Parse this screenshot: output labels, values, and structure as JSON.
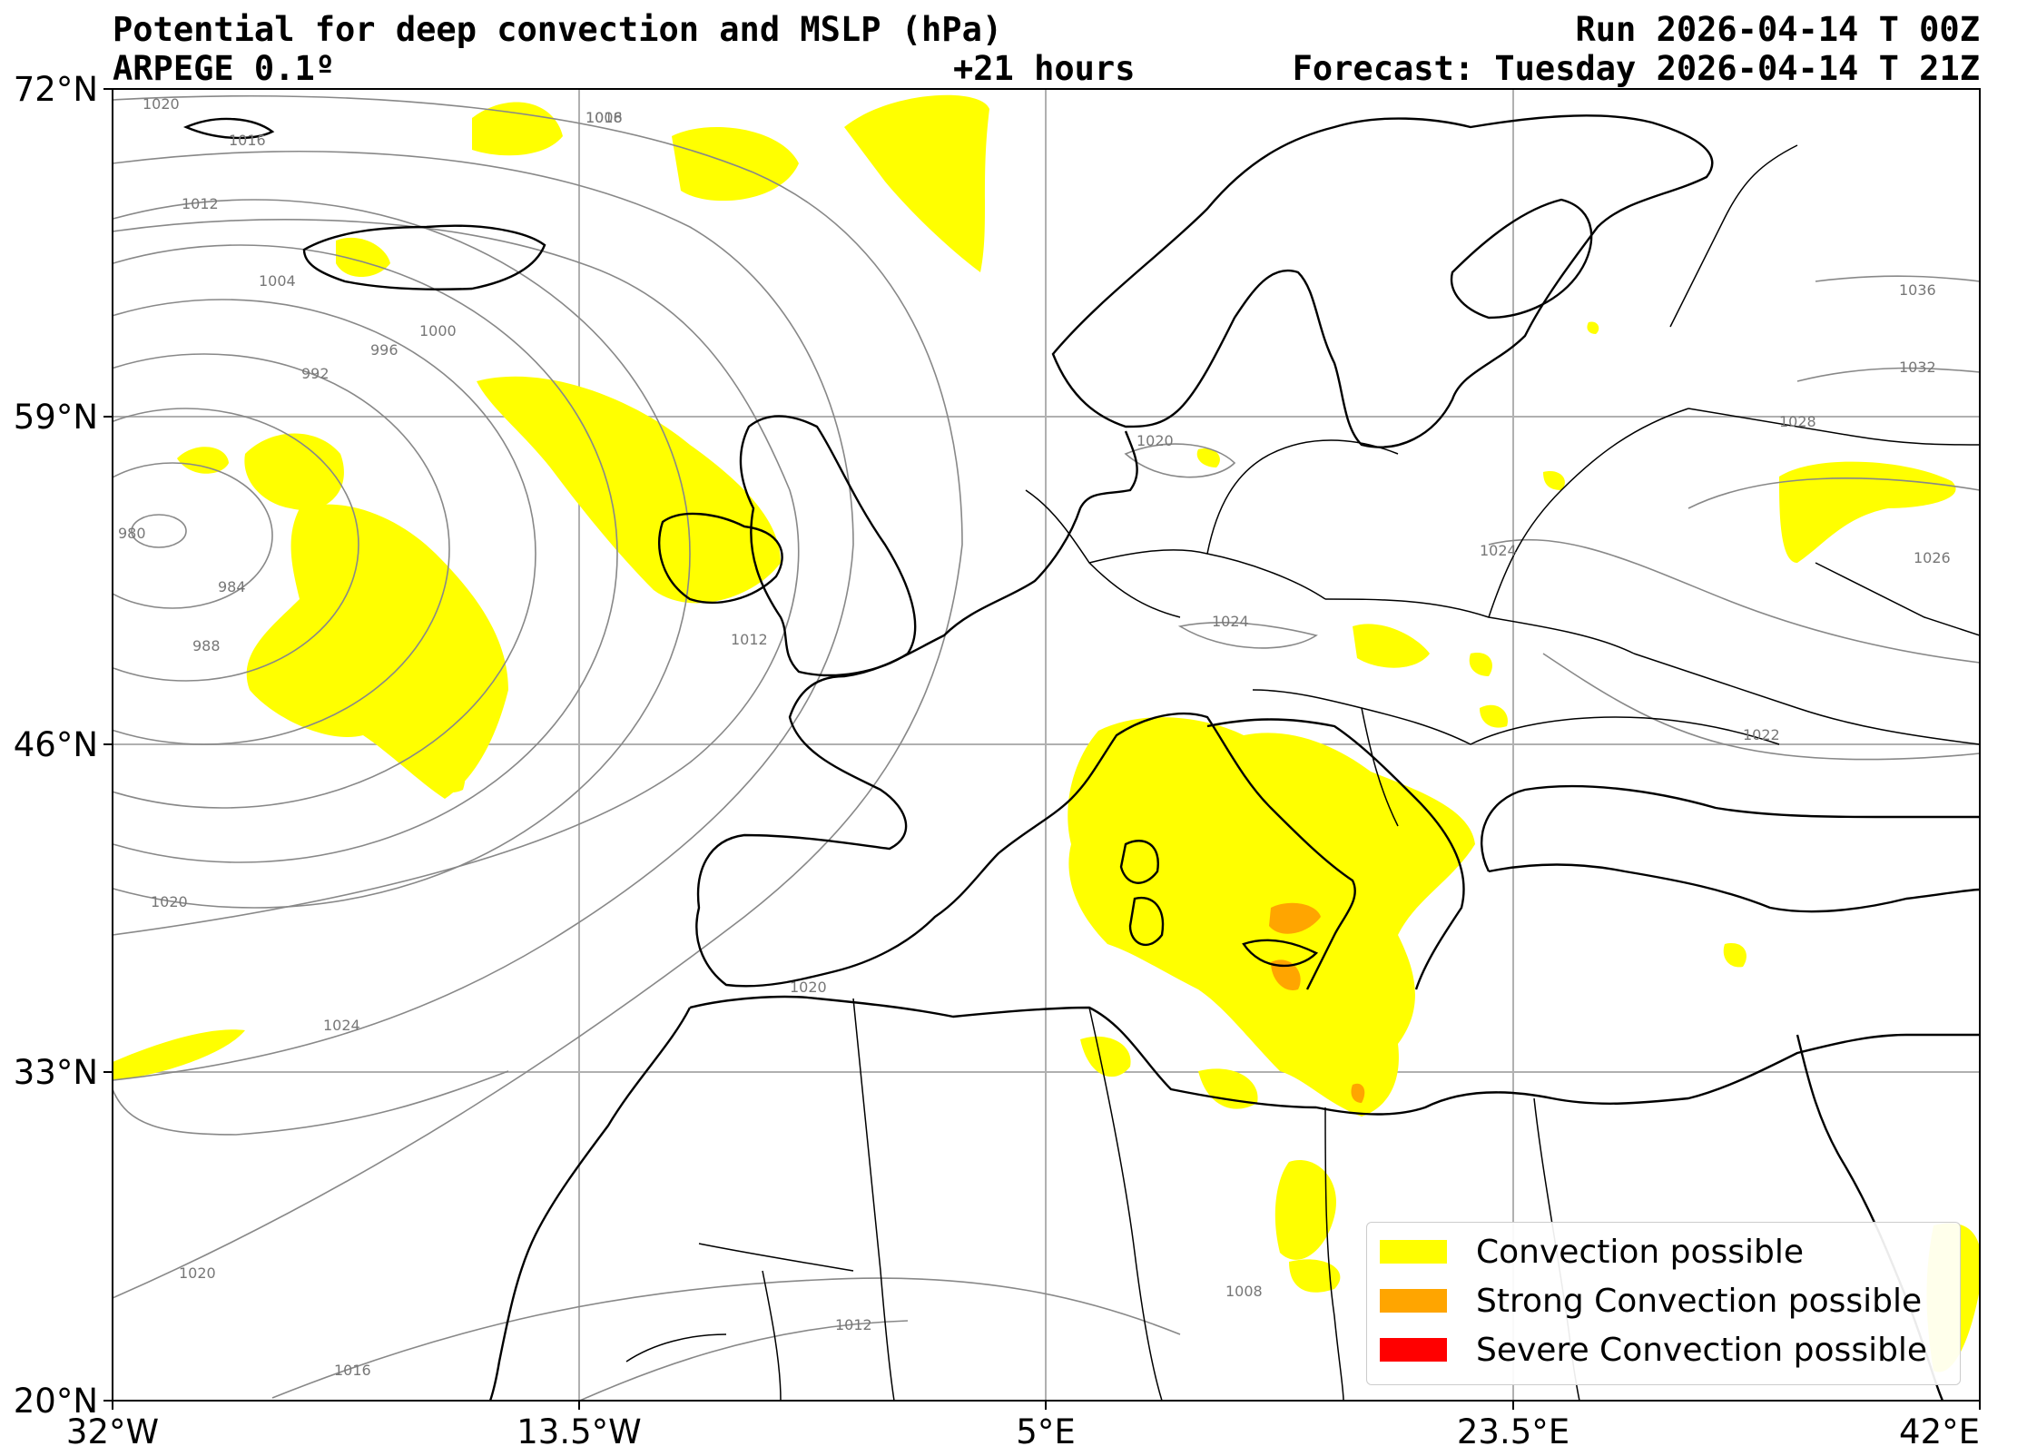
{
  "header": {
    "title": "Potential for deep convection and MSLP (hPa)",
    "model": "ARPEGE 0.1º",
    "lead_time": "+21 hours",
    "run": "Run 2026-04-14 T 00Z",
    "forecast": "Forecast: Tuesday 2026-04-14 T 21Z"
  },
  "axes": {
    "lat_labels": [
      "72°N",
      "59°N",
      "46°N",
      "33°N",
      "20°N"
    ],
    "lon_labels": [
      "32°W",
      "13.5°W",
      "5°E",
      "23.5°E",
      "42°E"
    ]
  },
  "isobar_labels": [
    "1020",
    "1016",
    "1012",
    "1008",
    "1004",
    "1000",
    "996",
    "992",
    "988",
    "984",
    "980",
    "1016",
    "1012",
    "1020",
    "1024",
    "1020",
    "1024",
    "1020",
    "1016",
    "1012",
    "1008",
    "1020",
    "1024",
    "1028",
    "1032",
    "1036",
    "1026",
    "1022"
  ],
  "legend": {
    "items": [
      {
        "label": "Convection possible",
        "color": "#ffff00"
      },
      {
        "label": "Strong Convection possible",
        "color": "#ffa500"
      },
      {
        "label": "Severe Convection possible",
        "color": "#ff0000"
      }
    ]
  },
  "colors": {
    "convection": "#ffff00",
    "strong": "#ffa500",
    "severe": "#ff0000",
    "coastline": "#000000",
    "isobar": "#888888",
    "gridline": "#b0b0b0"
  }
}
